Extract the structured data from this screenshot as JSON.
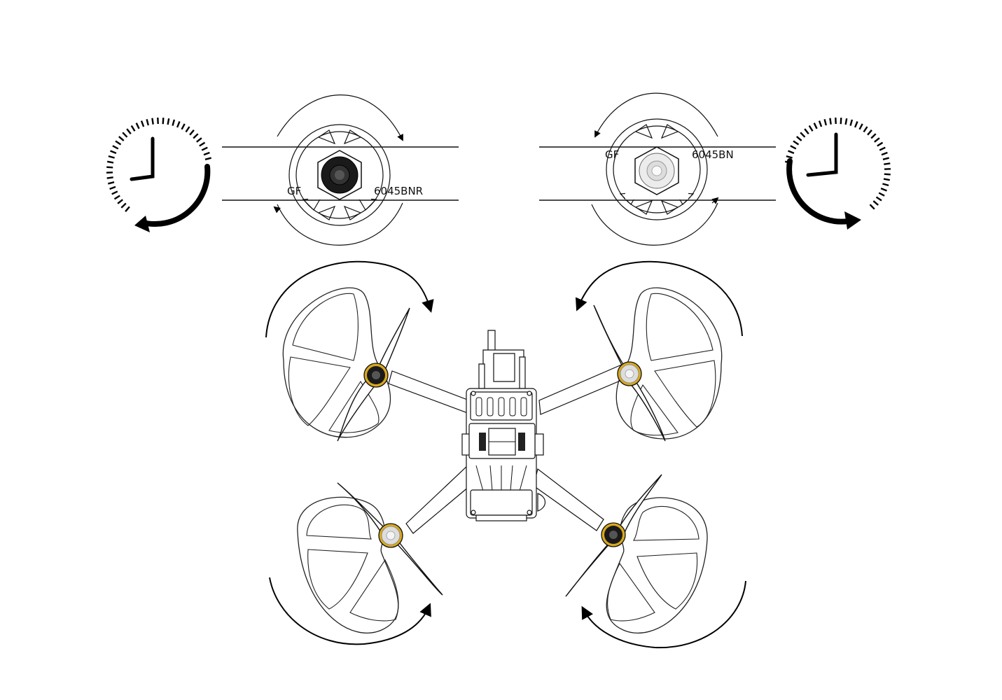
{
  "top_left_prop": {
    "label_left": "GF",
    "label_right": "6045BNR",
    "rotation": "counter-clockwise",
    "motor_color": "#1a1a1a"
  },
  "top_right_prop": {
    "label_left": "GF",
    "label_right": "6045BN",
    "rotation": "clockwise",
    "motor_color": "#e0e0e0"
  },
  "motors": [
    {
      "position": "front-left",
      "rotation": "clockwise",
      "motor_color": "#1a1a1a"
    },
    {
      "position": "front-right",
      "rotation": "counter-clockwise",
      "motor_color": "#dddddd"
    },
    {
      "position": "rear-left",
      "rotation": "counter-clockwise",
      "motor_color": "#dddddd"
    },
    {
      "position": "rear-right",
      "rotation": "clockwise",
      "motor_color": "#1a1a1a"
    }
  ],
  "colors": {
    "line": "#111111",
    "motor_accent": "#d4a820"
  },
  "icons": [
    "clock-ccw-icon",
    "clock-cw-icon",
    "rotation-arrow-icon"
  ]
}
